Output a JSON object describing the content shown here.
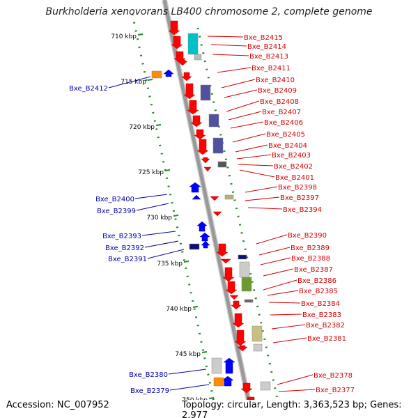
{
  "title": "Burkholderia xenovorans LB400 chromosome 2, complete genome",
  "footer": {
    "accession_label": "Accession:",
    "accession": "NC_007952",
    "topology_label": "Topology:",
    "topology": "circular",
    "length_label": "Length:",
    "length": "3,363,523 bp",
    "genes_label": "Genes:",
    "genes": "2,977"
  },
  "colors": {
    "forward_gene": "#ff0000",
    "reverse_gene": "#0000ff",
    "backbone": "#999999",
    "ruler_dots": "#228b22",
    "label_forward": "#d40000",
    "label_reverse": "#0000aa"
  },
  "ruler_labels": [
    "710 kbp",
    "715 kbp",
    "720 kbp",
    "725 kbp",
    "730 kbp",
    "735 kbp",
    "740 kbp",
    "745 kbp",
    "750 kbp"
  ],
  "forward_genes": [
    "Bxe_B2415",
    "Bxe_B2414",
    "Bxe_B2413",
    "Bxe_B2411",
    "Bxe_B2410",
    "Bxe_B2409",
    "Bxe_B2408",
    "Bxe_B2407",
    "Bxe_B2406",
    "Bxe_B2405",
    "Bxe_B2404",
    "Bxe_B2403",
    "Bxe_B2402",
    "Bxe_B2401",
    "Bxe_B2398",
    "Bxe_B2397",
    "Bxe_B2394",
    "Bxe_B2390",
    "Bxe_B2389",
    "Bxe_B2388",
    "Bxe_B2387",
    "Bxe_B2386",
    "Bxe_B2385",
    "Bxe_B2384",
    "Bxe_B2383",
    "Bxe_B2382",
    "Bxe_B2381",
    "Bxe_B2378",
    "Bxe_B2377"
  ],
  "reverse_genes": [
    "Bxe_B2412",
    "Bxe_B2400",
    "Bxe_B2399",
    "Bxe_B2393",
    "Bxe_B2392",
    "Bxe_B2391",
    "Bxe_B2380",
    "Bxe_B2379"
  ]
}
